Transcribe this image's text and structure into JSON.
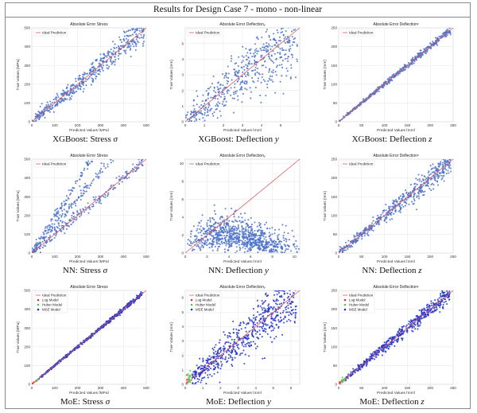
{
  "header": {
    "title": "Results for Design Case 7 - mono - non-linear"
  },
  "colors": {
    "ideal": "#e05560",
    "points": "#4c72c8",
    "log": "#e03030",
    "huber": "#4cc94c",
    "mse": "#2233c8"
  },
  "chart_data": [
    {
      "type": "scatter",
      "title": "Absolute Error Stress",
      "xlabel": "Predicted Values [MPa]",
      "ylabel": "True Values [MPa]",
      "xlim": [
        0,
        500
      ],
      "ylim": [
        0,
        500
      ],
      "xticks": [
        0,
        100,
        200,
        300,
        400,
        500
      ],
      "yticks": [
        0,
        100,
        200,
        300,
        400,
        500
      ],
      "legend": [
        "Ideal Prediction"
      ],
      "caption_model": "XGBoost",
      "caption_target": "Stress",
      "caption_symbol": "σ",
      "pattern": "diag",
      "spread": 0.06,
      "n": 500,
      "seed": 11
    },
    {
      "type": "scatter",
      "title": "Absolute Error Deflectionᵧ",
      "xlabel": "Predicted Values [mm]",
      "ylabel": "True Values [mm]",
      "xlim": [
        0,
        6
      ],
      "ylim": [
        0,
        6
      ],
      "xticks": [
        0,
        1,
        2,
        3,
        4,
        5
      ],
      "yticks": [
        0,
        1,
        2,
        3,
        4,
        5
      ],
      "legend": [
        "Ideal Prediction"
      ],
      "caption_model": "XGBoost",
      "caption_target": "Deflection",
      "caption_symbol": "y",
      "pattern": "diag",
      "spread": 0.16,
      "n": 550,
      "seed": 23
    },
    {
      "type": "scatter",
      "title": "Absolute Error Deflectionᶻ",
      "xlabel": "Predicted Values [mm]",
      "ylabel": "True Values [mm]",
      "xlim": [
        0,
        250
      ],
      "ylim": [
        0,
        250
      ],
      "xticks": [
        0,
        50,
        100,
        150,
        200,
        250
      ],
      "yticks": [
        0,
        50,
        100,
        150,
        200,
        250
      ],
      "legend": [
        "Ideal Prediction"
      ],
      "caption_model": "XGBoost",
      "caption_target": "Deflection",
      "caption_symbol": "z",
      "pattern": "diag",
      "spread": 0.015,
      "n": 450,
      "seed": 37
    },
    {
      "type": "scatter",
      "title": "Absolute Error Stress",
      "xlabel": "Predicted Values [MPa]",
      "ylabel": "True Values [MPa]",
      "xlim": [
        0,
        500
      ],
      "ylim": [
        0,
        500
      ],
      "xticks": [
        0,
        100,
        200,
        300,
        400,
        500
      ],
      "yticks": [
        0,
        100,
        200,
        300,
        400,
        500
      ],
      "legend": [
        "Ideal Prediction"
      ],
      "caption_model": "NN",
      "caption_target": "Stress",
      "caption_symbol": "σ",
      "pattern": "fan",
      "spread": 0.03,
      "n": 600,
      "seed": 41
    },
    {
      "type": "scatter",
      "title": "Absolute Error Deflectionᵧ",
      "xlabel": "Predicted Values [mm]",
      "ylabel": "True Values [mm]",
      "xlim": [
        0,
        10.5
      ],
      "ylim": [
        0,
        10.5
      ],
      "xticks": [
        0,
        2,
        4,
        6,
        8,
        10
      ],
      "yticks": [
        0,
        2,
        4,
        6,
        8,
        10
      ],
      "legend": [
        "Ideal Prediction"
      ],
      "caption_model": "NN",
      "caption_target": "Deflection",
      "caption_symbol": "y",
      "pattern": "blob",
      "spread": 0.2,
      "n": 900,
      "seed": 53
    },
    {
      "type": "scatter",
      "title": "Absolute Error Deflectionᶻ",
      "xlabel": "Predicted Values [mm]",
      "ylabel": "True Values [mm]",
      "xlim": [
        0,
        250
      ],
      "ylim": [
        0,
        250
      ],
      "xticks": [
        0,
        50,
        100,
        150,
        200,
        250
      ],
      "yticks": [
        0,
        50,
        100,
        150,
        200,
        250
      ],
      "legend": [
        "Ideal Prediction"
      ],
      "caption_model": "NN",
      "caption_target": "Deflection",
      "caption_symbol": "z",
      "pattern": "diag",
      "spread": 0.05,
      "n": 550,
      "seed": 61
    },
    {
      "type": "scatter",
      "title": "Absolute Error Stress",
      "xlabel": "Predicted Values [MPa]",
      "ylabel": "True Values [MPa]",
      "xlim": [
        0,
        500
      ],
      "ylim": [
        0,
        500
      ],
      "xticks": [
        0,
        100,
        200,
        300,
        400,
        500
      ],
      "yticks": [
        0,
        100,
        200,
        300,
        400,
        500
      ],
      "legend": [
        "Ideal Prediction",
        "Log Model",
        "Huber Model",
        "MSE Model"
      ],
      "caption_model": "MoE",
      "caption_target": "Stress",
      "caption_symbol": "σ",
      "pattern": "moe",
      "spread": 0.01,
      "n": 500,
      "seed": 71
    },
    {
      "type": "scatter",
      "title": "Absolute Error Deflectionᵧ",
      "xlabel": "Predicted Values [mm]",
      "ylabel": "True Values [mm]",
      "xlim": [
        0,
        6.5
      ],
      "ylim": [
        0,
        6.5
      ],
      "xticks": [
        0,
        1,
        2,
        3,
        4,
        5,
        6
      ],
      "yticks": [
        0,
        1,
        2,
        3,
        4,
        5,
        6
      ],
      "legend": [
        "Ideal Prediction",
        "Log Model",
        "Huber Model",
        "MSE Model"
      ],
      "caption_model": "MoE",
      "caption_target": "Deflection",
      "caption_symbol": "y",
      "pattern": "moe",
      "spread": 0.14,
      "n": 650,
      "seed": 83
    },
    {
      "type": "scatter",
      "title": "Absolute Error Deflectionᶻ",
      "xlabel": "Predicted Values [mm]",
      "ylabel": "True Values [mm]",
      "xlim": [
        0,
        250
      ],
      "ylim": [
        0,
        250
      ],
      "xticks": [
        0,
        50,
        100,
        150,
        200,
        250
      ],
      "yticks": [
        0,
        50,
        100,
        150,
        200,
        250
      ],
      "legend": [
        "Ideal Prediction",
        "Log Model",
        "Huber Model",
        "MSE Model"
      ],
      "caption_model": "MoE",
      "caption_target": "Deflection",
      "caption_symbol": "z",
      "pattern": "moe",
      "spread": 0.04,
      "n": 550,
      "seed": 97
    }
  ]
}
